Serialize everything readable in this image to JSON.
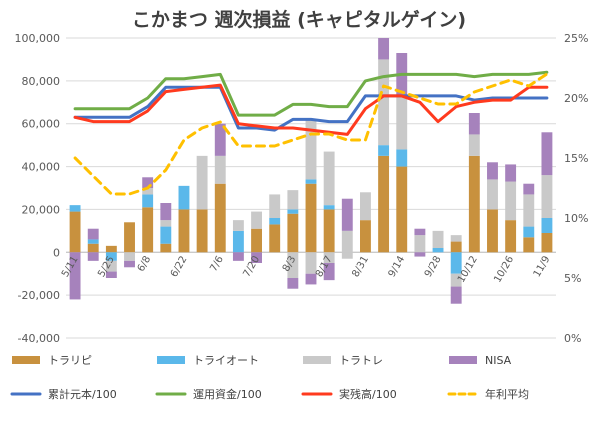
{
  "chart_data": {
    "type": "bar",
    "title": "こかまつ 週次損益 (キャピタルゲイン)",
    "ylim": [
      -40000,
      100000
    ],
    "yticks": [
      -40000,
      -20000,
      0,
      20000,
      40000,
      60000,
      80000,
      100000
    ],
    "ytick_labels": [
      "-40,000",
      "-20,000",
      "0",
      "20,000",
      "40,000",
      "60,000",
      "80,000",
      "100,000"
    ],
    "y2lim": [
      0,
      25
    ],
    "y2ticks": [
      0,
      5,
      10,
      15,
      20,
      25
    ],
    "y2tick_labels": [
      "0%",
      "5%",
      "10%",
      "15%",
      "20%",
      "25%"
    ],
    "x_tick_labels": [
      "5/11",
      "5/25",
      "6/8",
      "6/22",
      "7/6",
      "7/20",
      "8/3",
      "8/17",
      "8/31",
      "9/14",
      "9/28",
      "10/12",
      "10/26",
      "11/9"
    ],
    "x_tick_positions": [
      0,
      2,
      4,
      6,
      8,
      10,
      12,
      14,
      16,
      18,
      20,
      22,
      24,
      26
    ],
    "weeks": 27,
    "stacked": true,
    "bar_series": [
      {
        "name": "トラリピ",
        "color": "#C8913E",
        "values": [
          19000,
          4000,
          3000,
          14000,
          21000,
          4000,
          20000,
          20000,
          32000,
          0,
          11000,
          13000,
          18000,
          32000,
          20000,
          0,
          15000,
          45000,
          40000,
          0,
          0,
          5000,
          45000,
          20000,
          15000,
          7000,
          9000
        ]
      },
      {
        "name": "トライオート",
        "color": "#5BB8EA",
        "values": [
          3000,
          2000,
          0,
          0,
          6000,
          8000,
          11000,
          0,
          0,
          10000,
          0,
          3000,
          2000,
          2000,
          2000,
          0,
          0,
          5000,
          8000,
          0,
          2000,
          0,
          0,
          0,
          0,
          5000,
          7000
        ]
      },
      {
        "name": "トラトレ",
        "color": "#C9C9C9",
        "values": [
          0,
          0,
          0,
          0,
          3000,
          3000,
          0,
          25000,
          13000,
          5000,
          8000,
          11000,
          9000,
          28000,
          25000,
          10000,
          13000,
          40000,
          25000,
          8000,
          8000,
          3000,
          10000,
          14000,
          18000,
          15000,
          20000
        ]
      },
      {
        "name": "NISA",
        "color": "#A682BC",
        "values": [
          -2000,
          5000,
          0,
          0,
          5000,
          8000,
          0,
          0,
          15000,
          -4000,
          0,
          0,
          0,
          0,
          0,
          15000,
          0,
          10000,
          20000,
          3000,
          0,
          0,
          10000,
          8000,
          8000,
          5000,
          20000
        ]
      }
    ],
    "bar_negative_values": {
      "トラリピ": [
        0,
        0,
        0,
        0,
        0,
        0,
        0,
        0,
        0,
        0,
        0,
        0,
        0,
        0,
        0,
        0,
        0,
        0,
        0,
        0,
        0,
        0,
        0,
        0,
        0,
        0,
        0
      ],
      "トライオート": [
        0,
        0,
        -4000,
        0,
        0,
        0,
        0,
        0,
        0,
        0,
        0,
        0,
        0,
        0,
        0,
        0,
        0,
        0,
        0,
        0,
        0,
        -10000,
        0,
        0,
        0,
        0,
        0
      ],
      "トラトレ": [
        0,
        0,
        -5000,
        -4000,
        0,
        0,
        0,
        0,
        0,
        0,
        0,
        0,
        -12000,
        -10000,
        -5000,
        -3000,
        0,
        0,
        0,
        0,
        0,
        -6000,
        0,
        0,
        0,
        0,
        0
      ],
      "NISA": [
        -20000,
        -4000,
        -3000,
        -3000,
        0,
        0,
        0,
        0,
        0,
        0,
        -5000,
        0,
        -5000,
        -5000,
        -8000,
        0,
        0,
        0,
        0,
        -2000,
        0,
        -8000,
        0,
        0,
        0,
        0,
        0
      ]
    },
    "line_series": [
      {
        "name": "累計元本/100",
        "color": "#4472C4",
        "axis": "left",
        "values": [
          63000,
          63000,
          63000,
          63000,
          68000,
          77000,
          77000,
          77000,
          77000,
          58000,
          58000,
          57000,
          62000,
          62000,
          61000,
          61000,
          73000,
          73000,
          73000,
          73000,
          73000,
          73000,
          71000,
          72000,
          72000,
          72000,
          72000
        ]
      },
      {
        "name": "運用資金/100",
        "color": "#70AD47",
        "axis": "left",
        "values": [
          67000,
          67000,
          67000,
          67000,
          72000,
          81000,
          81000,
          82000,
          83000,
          64000,
          64000,
          64000,
          69000,
          69000,
          68000,
          68000,
          80000,
          82000,
          83000,
          83000,
          83000,
          83000,
          82000,
          83000,
          83000,
          83000,
          84000
        ]
      },
      {
        "name": "実残高/100",
        "color": "#FF3A1E",
        "axis": "left",
        "values": [
          63000,
          61000,
          61000,
          61000,
          66000,
          75000,
          76000,
          77000,
          78000,
          60000,
          59000,
          58000,
          58000,
          57000,
          56000,
          55000,
          67000,
          73000,
          73000,
          70000,
          61000,
          68000,
          70000,
          71000,
          71000,
          77000,
          77000
        ]
      },
      {
        "name": "年利平均",
        "color": "#FFC000",
        "axis": "right",
        "dashed": true,
        "values": [
          15.0,
          13.5,
          12.0,
          12.0,
          12.5,
          14.0,
          16.5,
          17.5,
          18.0,
          16.0,
          16.0,
          16.0,
          16.5,
          17.0,
          17.0,
          16.5,
          16.5,
          21.0,
          20.5,
          20.0,
          19.5,
          19.5,
          20.5,
          21.0,
          21.5,
          21.0,
          22.0
        ]
      }
    ],
    "legend": {
      "placement": "bottom",
      "rows": [
        [
          "トラリピ",
          "トライオート",
          "トラトレ",
          "NISA"
        ],
        [
          "累計元本/100",
          "運用資金/100",
          "実残高/100",
          "年利平均"
        ]
      ]
    },
    "grid": true
  }
}
